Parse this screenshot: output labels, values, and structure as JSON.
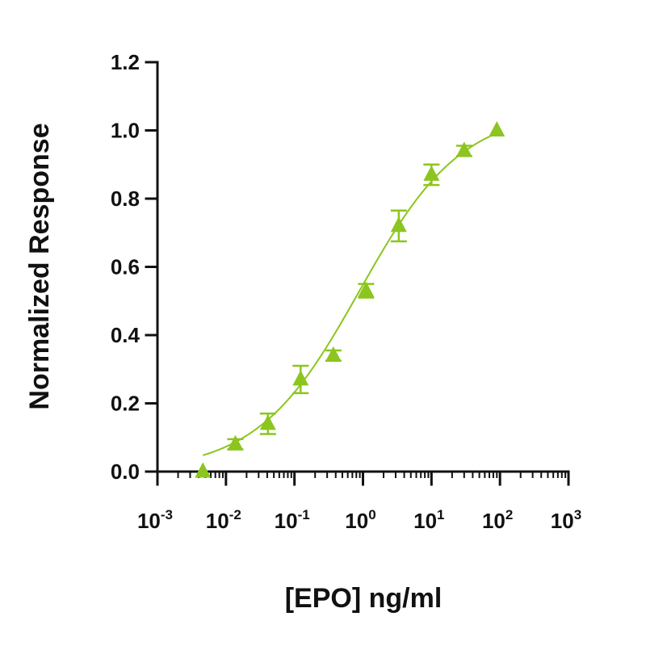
{
  "chart_data": {
    "type": "scatter",
    "title": "",
    "xlabel": "[EPO] ng/ml",
    "ylabel": "Normalized Response",
    "x_scale": "log10",
    "xlim": [
      0.001,
      1000
    ],
    "ylim": [
      0,
      1.2
    ],
    "x_ticks": [
      {
        "value": 0.001,
        "base": "10",
        "exp": "-3"
      },
      {
        "value": 0.01,
        "base": "10",
        "exp": "-2"
      },
      {
        "value": 0.1,
        "base": "10",
        "exp": "-1"
      },
      {
        "value": 1,
        "base": "10",
        "exp": "0"
      },
      {
        "value": 10,
        "base": "10",
        "exp": "1"
      },
      {
        "value": 100,
        "base": "10",
        "exp": "2"
      },
      {
        "value": 1000,
        "base": "10",
        "exp": "3"
      }
    ],
    "y_ticks": [
      {
        "value": 0.0,
        "label": "0.0"
      },
      {
        "value": 0.2,
        "label": "0.2"
      },
      {
        "value": 0.4,
        "label": "0.4"
      },
      {
        "value": 0.6,
        "label": "0.6"
      },
      {
        "value": 0.8,
        "label": "0.8"
      },
      {
        "value": 1.0,
        "label": "1.0"
      },
      {
        "value": 1.2,
        "label": "1.2"
      }
    ],
    "grid": false,
    "legend": "none",
    "color": "#8cc51f",
    "series": [
      {
        "marker": "triangle",
        "points": [
          {
            "x": 0.0046,
            "y": 0.0,
            "err": 0.0
          },
          {
            "x": 0.0137,
            "y": 0.08,
            "err": 0.015
          },
          {
            "x": 0.041,
            "y": 0.14,
            "err": 0.03
          },
          {
            "x": 0.123,
            "y": 0.27,
            "err": 0.04
          },
          {
            "x": 0.37,
            "y": 0.34,
            "err": 0.015
          },
          {
            "x": 1.11,
            "y": 0.53,
            "err": 0.02
          },
          {
            "x": 3.33,
            "y": 0.72,
            "err": 0.045
          },
          {
            "x": 10.0,
            "y": 0.87,
            "err": 0.03
          },
          {
            "x": 30.0,
            "y": 0.94,
            "err": 0.015
          },
          {
            "x": 90.0,
            "y": 1.0,
            "err": 0.0
          }
        ]
      }
    ],
    "fit_curve": {
      "type": "4PL",
      "bottom": 0.0,
      "top": 1.06,
      "log_ec50": -0.05,
      "hill": 0.58,
      "x_range": [
        0.0046,
        90.0
      ]
    }
  }
}
